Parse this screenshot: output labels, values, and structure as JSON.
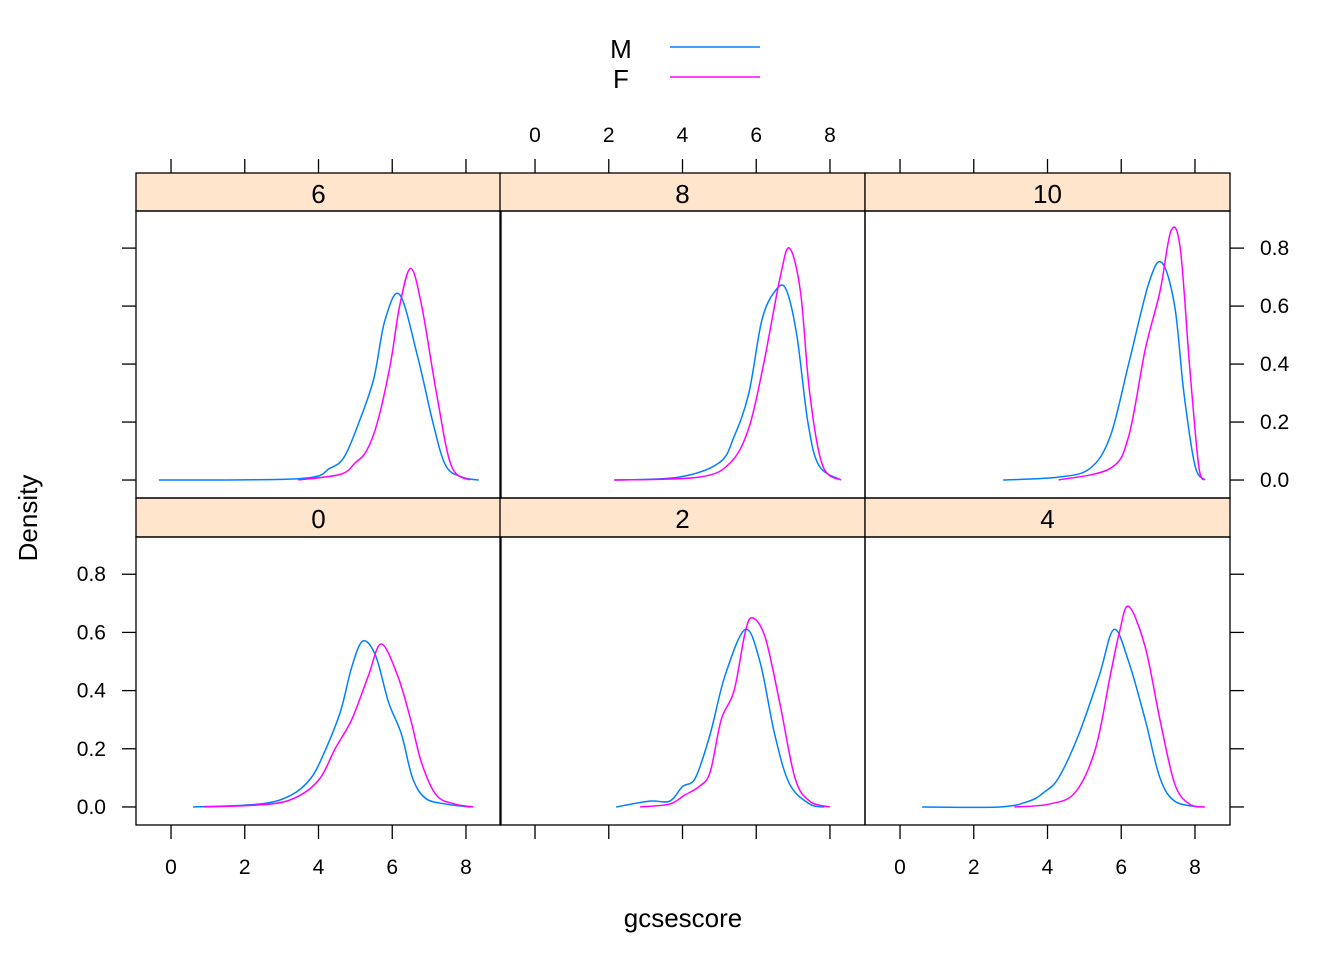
{
  "chart_data": {
    "type": "line",
    "subtype": "density",
    "xlabel": "gcsescore",
    "ylabel": "Density",
    "xlim": [
      -0.95,
      8.95
    ],
    "ylim": [
      -0.062,
      0.928
    ],
    "x_ticks": [
      0,
      2,
      4,
      6,
      8
    ],
    "y_ticks": [
      0.0,
      0.2,
      0.4,
      0.6,
      0.8
    ],
    "y_tick_labels": [
      "0.0",
      "0.2",
      "0.4",
      "0.6",
      "0.8"
    ],
    "grid": false,
    "legend": {
      "placement": "top",
      "entries": [
        {
          "name": "M",
          "color": "#0080ff"
        },
        {
          "name": "F",
          "color": "#ff00ff"
        }
      ]
    },
    "strip_color": "#ffe5cc",
    "panels": [
      {
        "label": "0",
        "row": "bottom",
        "col": 1,
        "series": [
          {
            "name": "M",
            "points": [
              [
                0.6,
                0
              ],
              [
                2.4,
                0.01
              ],
              [
                3.25,
                0.04
              ],
              [
                3.8,
                0.1
              ],
              [
                4.2,
                0.2
              ],
              [
                4.6,
                0.33
              ],
              [
                4.9,
                0.48
              ],
              [
                5.2,
                0.57
              ],
              [
                5.55,
                0.52
              ],
              [
                5.9,
                0.36
              ],
              [
                6.25,
                0.25
              ],
              [
                6.55,
                0.1
              ],
              [
                6.9,
                0.03
              ],
              [
                7.45,
                0.01
              ],
              [
                8.1,
                0
              ]
            ]
          },
          {
            "name": "F",
            "points": [
              [
                0.9,
                0
              ],
              [
                2.7,
                0.01
              ],
              [
                3.5,
                0.04
              ],
              [
                4.05,
                0.1
              ],
              [
                4.45,
                0.2
              ],
              [
                4.9,
                0.3
              ],
              [
                5.35,
                0.45
              ],
              [
                5.7,
                0.56
              ],
              [
                6.15,
                0.45
              ],
              [
                6.5,
                0.3
              ],
              [
                6.8,
                0.15
              ],
              [
                7.2,
                0.04
              ],
              [
                7.7,
                0.01
              ],
              [
                8.2,
                0
              ]
            ]
          }
        ]
      },
      {
        "label": "2",
        "row": "bottom",
        "col": 2,
        "series": [
          {
            "name": "M",
            "points": [
              [
                2.2,
                0
              ],
              [
                3.1,
                0.02
              ],
              [
                3.65,
                0.02
              ],
              [
                4.0,
                0.07
              ],
              [
                4.35,
                0.1
              ],
              [
                4.75,
                0.25
              ],
              [
                5.15,
                0.45
              ],
              [
                5.7,
                0.61
              ],
              [
                6.1,
                0.5
              ],
              [
                6.5,
                0.25
              ],
              [
                6.9,
                0.08
              ],
              [
                7.45,
                0.01
              ],
              [
                7.85,
                0
              ]
            ]
          },
          {
            "name": "F",
            "points": [
              [
                2.85,
                0
              ],
              [
                3.65,
                0.01
              ],
              [
                4.05,
                0.04
              ],
              [
                4.45,
                0.07
              ],
              [
                4.75,
                0.12
              ],
              [
                5.05,
                0.3
              ],
              [
                5.4,
                0.4
              ],
              [
                5.7,
                0.6
              ],
              [
                5.9,
                0.65
              ],
              [
                6.25,
                0.58
              ],
              [
                6.65,
                0.35
              ],
              [
                7.05,
                0.1
              ],
              [
                7.45,
                0.02
              ],
              [
                8.0,
                0
              ]
            ]
          }
        ]
      },
      {
        "label": "4",
        "row": "bottom",
        "col": 3,
        "series": [
          {
            "name": "M",
            "points": [
              [
                0.6,
                0
              ],
              [
                2.7,
                0
              ],
              [
                3.5,
                0.02
              ],
              [
                3.9,
                0.05
              ],
              [
                4.3,
                0.1
              ],
              [
                4.85,
                0.25
              ],
              [
                5.4,
                0.45
              ],
              [
                5.8,
                0.61
              ],
              [
                6.2,
                0.5
              ],
              [
                6.65,
                0.3
              ],
              [
                7.05,
                0.1
              ],
              [
                7.45,
                0.02
              ],
              [
                8.1,
                0
              ]
            ]
          },
          {
            "name": "F",
            "points": [
              [
                3.1,
                0
              ],
              [
                4.05,
                0.01
              ],
              [
                4.75,
                0.05
              ],
              [
                5.3,
                0.2
              ],
              [
                5.7,
                0.45
              ],
              [
                5.95,
                0.6
              ],
              [
                6.2,
                0.69
              ],
              [
                6.65,
                0.55
              ],
              [
                7.05,
                0.3
              ],
              [
                7.45,
                0.08
              ],
              [
                7.85,
                0.01
              ],
              [
                8.27,
                0
              ]
            ]
          }
        ]
      },
      {
        "label": "6",
        "row": "top",
        "col": 1,
        "series": [
          {
            "name": "M",
            "points": [
              [
                -0.33,
                0
              ],
              [
                3.5,
                0.005
              ],
              [
                4.3,
                0.04
              ],
              [
                4.7,
                0.08
              ],
              [
                5.1,
                0.2
              ],
              [
                5.5,
                0.35
              ],
              [
                5.8,
                0.55
              ],
              [
                6.2,
                0.64
              ],
              [
                6.7,
                0.42
              ],
              [
                7.1,
                0.2
              ],
              [
                7.45,
                0.05
              ],
              [
                7.9,
                0.01
              ],
              [
                8.35,
                0
              ]
            ]
          },
          {
            "name": "F",
            "points": [
              [
                3.45,
                0
              ],
              [
                4.6,
                0.02
              ],
              [
                5.0,
                0.06
              ],
              [
                5.3,
                0.1
              ],
              [
                5.6,
                0.2
              ],
              [
                5.95,
                0.4
              ],
              [
                6.2,
                0.6
              ],
              [
                6.5,
                0.73
              ],
              [
                6.8,
                0.6
              ],
              [
                7.2,
                0.3
              ],
              [
                7.6,
                0.05
              ],
              [
                8.1,
                0
              ]
            ]
          }
        ]
      },
      {
        "label": "8",
        "row": "top",
        "col": 2,
        "series": [
          {
            "name": "M",
            "points": [
              [
                2.15,
                0
              ],
              [
                3.9,
                0.01
              ],
              [
                5.0,
                0.06
              ],
              [
                5.4,
                0.15
              ],
              [
                5.8,
                0.3
              ],
              [
                6.15,
                0.55
              ],
              [
                6.5,
                0.65
              ],
              [
                6.8,
                0.66
              ],
              [
                7.1,
                0.5
              ],
              [
                7.4,
                0.2
              ],
              [
                7.7,
                0.05
              ],
              [
                8.3,
                0
              ]
            ]
          },
          {
            "name": "F",
            "points": [
              [
                2.15,
                0
              ],
              [
                4.45,
                0.01
              ],
              [
                5.3,
                0.06
              ],
              [
                5.8,
                0.18
              ],
              [
                6.2,
                0.4
              ],
              [
                6.65,
                0.7
              ],
              [
                6.9,
                0.8
              ],
              [
                7.2,
                0.65
              ],
              [
                7.45,
                0.3
              ],
              [
                7.8,
                0.05
              ],
              [
                8.3,
                0
              ]
            ]
          }
        ]
      },
      {
        "label": "10",
        "row": "top",
        "col": 3,
        "series": [
          {
            "name": "M",
            "points": [
              [
                2.8,
                0
              ],
              [
                4.3,
                0.01
              ],
              [
                5.15,
                0.04
              ],
              [
                5.7,
                0.15
              ],
              [
                6.2,
                0.4
              ],
              [
                6.75,
                0.68
              ],
              [
                7.1,
                0.75
              ],
              [
                7.45,
                0.6
              ],
              [
                7.7,
                0.3
              ],
              [
                8.0,
                0.05
              ],
              [
                8.27,
                0
              ]
            ]
          },
          {
            "name": "F",
            "points": [
              [
                4.3,
                0
              ],
              [
                5.7,
                0.04
              ],
              [
                6.2,
                0.15
              ],
              [
                6.65,
                0.45
              ],
              [
                7.05,
                0.65
              ],
              [
                7.35,
                0.86
              ],
              [
                7.6,
                0.8
              ],
              [
                7.85,
                0.4
              ],
              [
                8.1,
                0.05
              ],
              [
                8.27,
                0
              ]
            ]
          }
        ]
      }
    ]
  }
}
